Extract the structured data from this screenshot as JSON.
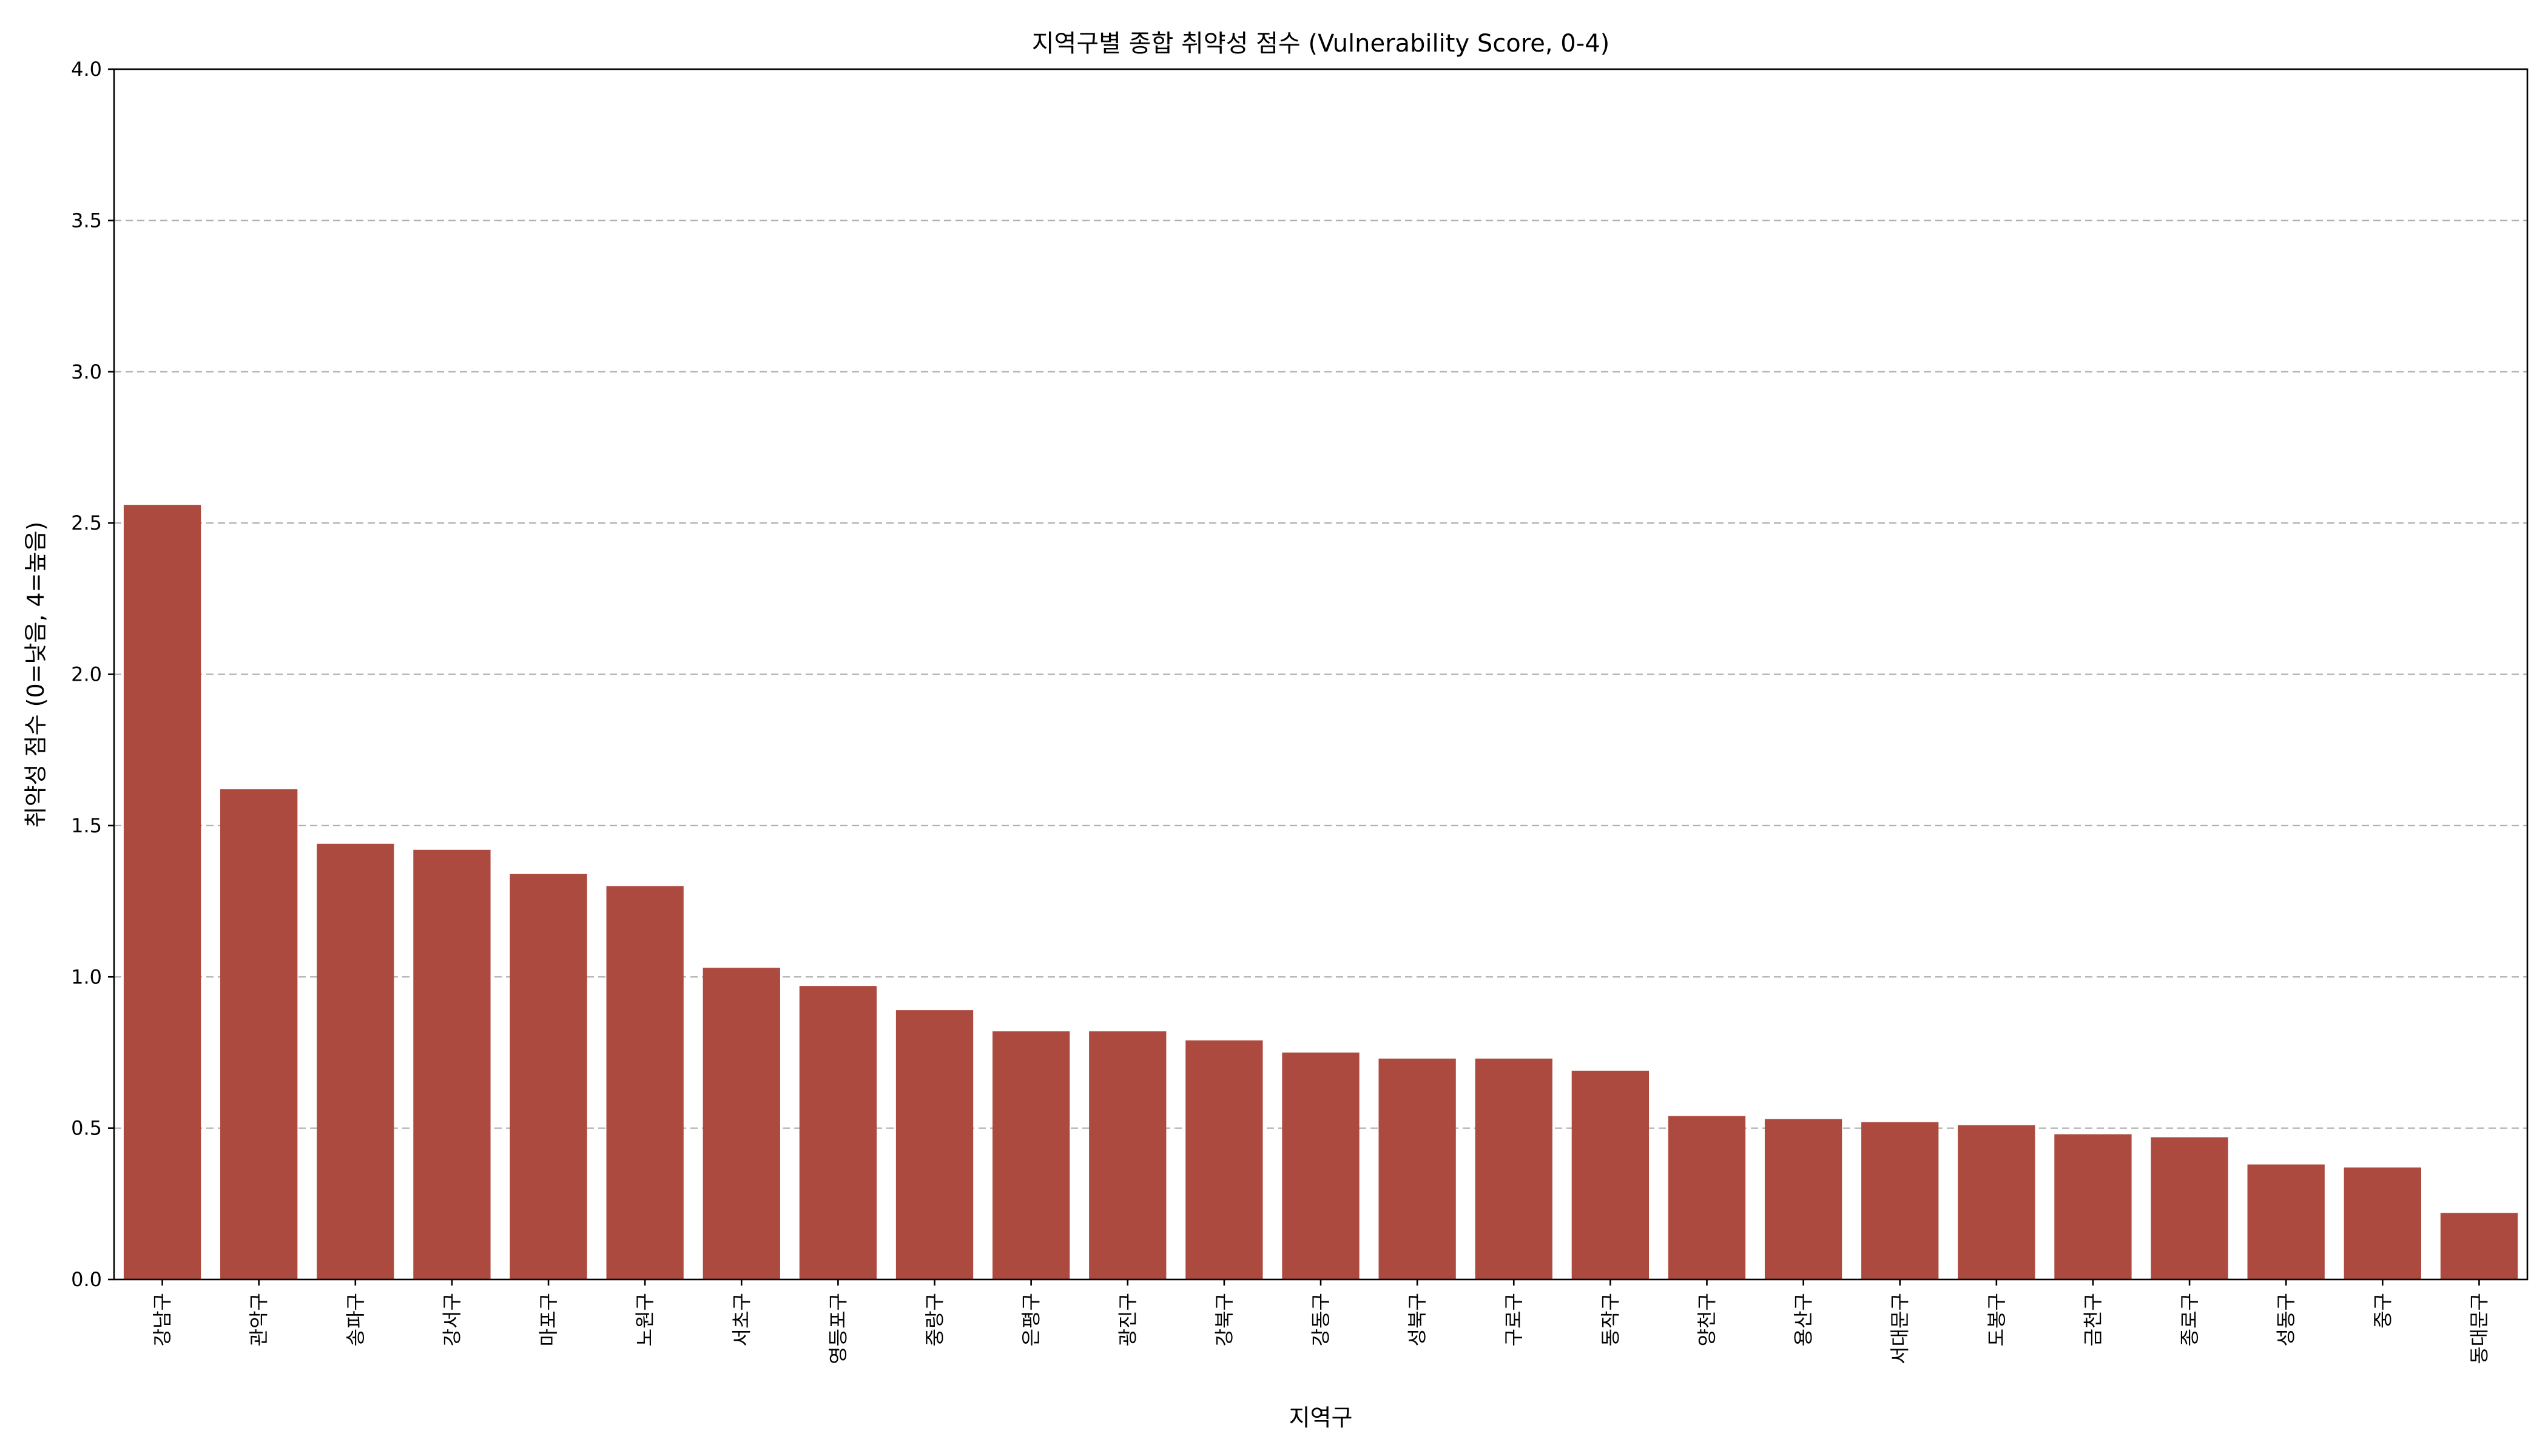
{
  "chart_data": {
    "type": "bar",
    "title": "지역구별 종합 취약성 점수 (Vulnerability Score, 0-4)",
    "xlabel": "지역구",
    "ylabel": "취약성 점수 (0=낮음, 4=높음)",
    "ylim": [
      0,
      4
    ],
    "yticks": [
      "0.0",
      "0.5",
      "1.0",
      "1.5",
      "2.0",
      "2.5",
      "3.0",
      "3.5",
      "4.0"
    ],
    "grid": "y dashed",
    "bar_color": "#ad4a3f",
    "categories": [
      "강남구",
      "관악구",
      "송파구",
      "강서구",
      "마포구",
      "노원구",
      "서초구",
      "영등포구",
      "중랑구",
      "은평구",
      "광진구",
      "강북구",
      "강동구",
      "성북구",
      "구로구",
      "동작구",
      "양천구",
      "용산구",
      "서대문구",
      "도봉구",
      "금천구",
      "종로구",
      "성동구",
      "중구",
      "동대문구"
    ],
    "values": [
      2.56,
      1.62,
      1.44,
      1.42,
      1.34,
      1.3,
      1.03,
      0.97,
      0.89,
      0.82,
      0.82,
      0.79,
      0.75,
      0.73,
      0.73,
      0.69,
      0.54,
      0.53,
      0.52,
      0.51,
      0.48,
      0.47,
      0.38,
      0.37,
      0.22
    ]
  }
}
